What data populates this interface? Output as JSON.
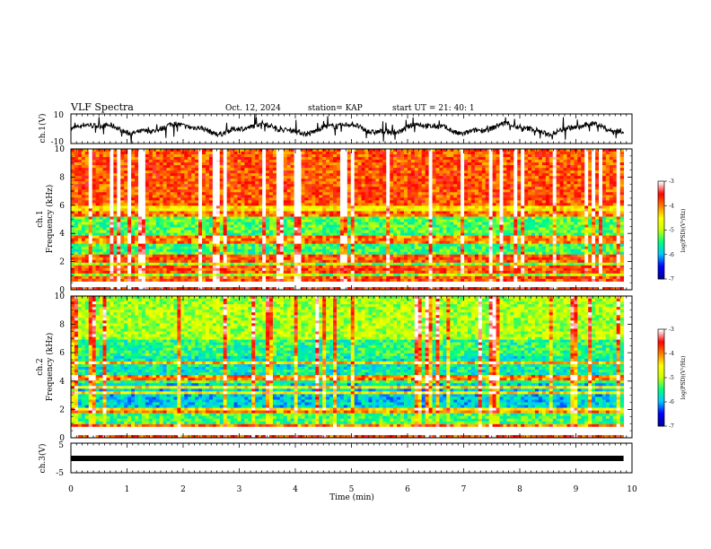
{
  "header": {
    "title": "VLF Spectra",
    "date": "Oct. 12, 2024",
    "station": "station= KAP",
    "start_ut": "start  UT  =   21: 40: 1"
  },
  "chart_data": [
    {
      "type": "line",
      "panel": "ch1-waveform",
      "ylabel": "ch.1(V)",
      "ylim": [
        -10,
        10
      ],
      "yticks": [
        "10",
        "-10"
      ],
      "series": [
        {
          "color": "#000000"
        }
      ]
    },
    {
      "type": "heatmap",
      "panel": "ch1-spectrogram",
      "ylabel_line1": "ch.1",
      "ylabel_line2": "Frequency  (kHz)",
      "ylim": [
        0,
        10
      ],
      "yticks": [
        "0",
        "2",
        "4",
        "6",
        "8",
        "10"
      ],
      "bands_khz": [
        0.3,
        0.6,
        0.9,
        1.2,
        1.5,
        2.1,
        2.4,
        3.5,
        3.8,
        5.4
      ],
      "colorbar": {
        "label": "log(PSD)(V²/Hz)",
        "range": [
          -7,
          -3
        ],
        "ticks": [
          "-3",
          "-4",
          "-5",
          "-6",
          "-7"
        ],
        "colormap": [
          "#0000a0",
          "#0000ff",
          "#00c8ff",
          "#00ff80",
          "#c8ff00",
          "#ffff00",
          "#ff8000",
          "#ff0000",
          "#ffffff"
        ]
      }
    },
    {
      "type": "heatmap",
      "panel": "ch2-spectrogram",
      "ylabel_line1": "ch.2",
      "ylabel_line2": "Frequency  (kHz)",
      "ylim": [
        0,
        10
      ],
      "yticks": [
        "0",
        "2",
        "4",
        "6",
        "8",
        "10"
      ],
      "bands_khz": [
        0.4,
        0.8,
        1.9,
        3.2,
        3.6,
        4.2,
        5.3
      ],
      "colorbar": {
        "label": "log(PSD)(V²/Hz)",
        "range": [
          -7,
          -3
        ],
        "ticks": [
          "-3",
          "-4",
          "-5",
          "-6",
          "-7"
        ],
        "colormap": [
          "#0000a0",
          "#0000ff",
          "#00c8ff",
          "#00ff80",
          "#c8ff00",
          "#ffff00",
          "#ff8000",
          "#ff0000",
          "#ffffff"
        ]
      }
    },
    {
      "type": "line",
      "panel": "ch3-waveform",
      "ylabel": "ch.3(V)",
      "ylim": [
        -5,
        5
      ],
      "yticks": [
        "5",
        "-5"
      ],
      "series": [
        {
          "color": "#000000"
        }
      ]
    }
  ],
  "xaxis": {
    "label": "Time  (min)",
    "xlim": [
      0,
      10
    ],
    "ticks": [
      "0",
      "1",
      "2",
      "3",
      "4",
      "5",
      "6",
      "7",
      "8",
      "9",
      "10"
    ],
    "data_end_min": 9.85
  }
}
